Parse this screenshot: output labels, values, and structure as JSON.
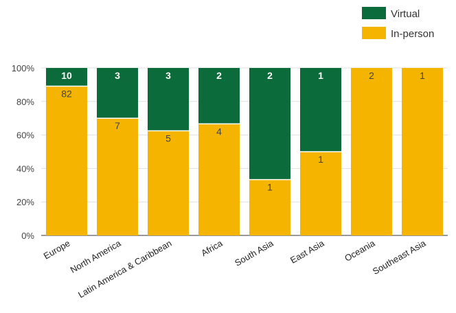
{
  "chart_data": {
    "type": "bar",
    "stacked": true,
    "percent": true,
    "categories": [
      "Europe",
      "North America",
      "Latin America & Caribbean",
      "Africa",
      "South Asia",
      "East Asia",
      "Oceania",
      "Southeast Asia"
    ],
    "series": [
      {
        "name": "In-person",
        "color": "#f4b400",
        "values": [
          82,
          7,
          5,
          4,
          1,
          1,
          2,
          1
        ]
      },
      {
        "name": "Virtual",
        "color": "#0b6b3a",
        "values": [
          10,
          3,
          3,
          2,
          2,
          1,
          0,
          0
        ]
      }
    ],
    "legend_order": [
      "Virtual",
      "In-person"
    ],
    "legend_position": "top-right",
    "yticks": [
      "0%",
      "20%",
      "40%",
      "60%",
      "80%",
      "100%"
    ],
    "ylim": [
      0,
      100
    ],
    "grid": true
  }
}
